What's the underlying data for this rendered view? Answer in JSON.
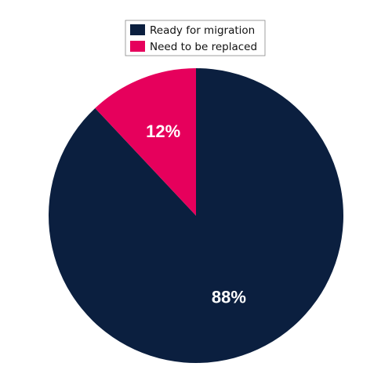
{
  "chart_data": {
    "type": "pie",
    "categories": [
      "Ready for migration",
      "Need to be replaced"
    ],
    "values": [
      88,
      12
    ],
    "value_labels": [
      "88%",
      "12%"
    ],
    "colors": [
      "#0b1f3f",
      "#e6005c"
    ],
    "legend": "top"
  }
}
